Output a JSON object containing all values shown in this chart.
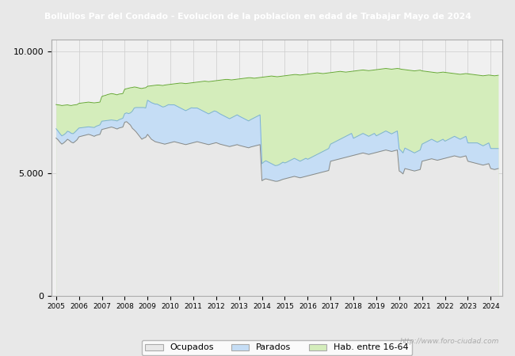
{
  "title": "Bollullos Par del Condado - Evolucion de la poblacion en edad de Trabajar Mayo de 2024",
  "title_bg": "#4472c4",
  "title_color": "#ffffff",
  "ylim": [
    0,
    10500
  ],
  "yticks": [
    0,
    5000,
    10000
  ],
  "ytick_labels": [
    "0",
    "5.000",
    "10.000"
  ],
  "xmin": 2004.8,
  "xmax": 2024.5,
  "bg_outer": "#e8e8e8",
  "bg_plot": "#f0f0f0",
  "watermark": "http://www.foro-ciudad.com",
  "color_hab_fill": "#d4edbb",
  "color_hab_line": "#66aa33",
  "color_par_fill": "#c5ddf5",
  "color_par_line": "#7ab0d8",
  "color_ocu_fill": "#e8e8e8",
  "color_ocu_line": "#888888",
  "months": [
    2005.0,
    2005.083,
    2005.167,
    2005.25,
    2005.333,
    2005.417,
    2005.5,
    2005.583,
    2005.667,
    2005.75,
    2005.833,
    2005.917,
    2006.0,
    2006.083,
    2006.167,
    2006.25,
    2006.333,
    2006.417,
    2006.5,
    2006.583,
    2006.667,
    2006.75,
    2006.833,
    2006.917,
    2007.0,
    2007.083,
    2007.167,
    2007.25,
    2007.333,
    2007.417,
    2007.5,
    2007.583,
    2007.667,
    2007.75,
    2007.833,
    2007.917,
    2008.0,
    2008.083,
    2008.167,
    2008.25,
    2008.333,
    2008.417,
    2008.5,
    2008.583,
    2008.667,
    2008.75,
    2008.833,
    2008.917,
    2009.0,
    2009.083,
    2009.167,
    2009.25,
    2009.333,
    2009.417,
    2009.5,
    2009.583,
    2009.667,
    2009.75,
    2009.833,
    2009.917,
    2010.0,
    2010.083,
    2010.167,
    2010.25,
    2010.333,
    2010.417,
    2010.5,
    2010.583,
    2010.667,
    2010.75,
    2010.833,
    2010.917,
    2011.0,
    2011.083,
    2011.167,
    2011.25,
    2011.333,
    2011.417,
    2011.5,
    2011.583,
    2011.667,
    2011.75,
    2011.833,
    2011.917,
    2012.0,
    2012.083,
    2012.167,
    2012.25,
    2012.333,
    2012.417,
    2012.5,
    2012.583,
    2012.667,
    2012.75,
    2012.833,
    2012.917,
    2013.0,
    2013.083,
    2013.167,
    2013.25,
    2013.333,
    2013.417,
    2013.5,
    2013.583,
    2013.667,
    2013.75,
    2013.833,
    2013.917,
    2014.0,
    2014.083,
    2014.167,
    2014.25,
    2014.333,
    2014.417,
    2014.5,
    2014.583,
    2014.667,
    2014.75,
    2014.833,
    2014.917,
    2015.0,
    2015.083,
    2015.167,
    2015.25,
    2015.333,
    2015.417,
    2015.5,
    2015.583,
    2015.667,
    2015.75,
    2015.833,
    2015.917,
    2016.0,
    2016.083,
    2016.167,
    2016.25,
    2016.333,
    2016.417,
    2016.5,
    2016.583,
    2016.667,
    2016.75,
    2016.833,
    2016.917,
    2017.0,
    2017.083,
    2017.167,
    2017.25,
    2017.333,
    2017.417,
    2017.5,
    2017.583,
    2017.667,
    2017.75,
    2017.833,
    2017.917,
    2018.0,
    2018.083,
    2018.167,
    2018.25,
    2018.333,
    2018.417,
    2018.5,
    2018.583,
    2018.667,
    2018.75,
    2018.833,
    2018.917,
    2019.0,
    2019.083,
    2019.167,
    2019.25,
    2019.333,
    2019.417,
    2019.5,
    2019.583,
    2019.667,
    2019.75,
    2019.833,
    2019.917,
    2020.0,
    2020.083,
    2020.167,
    2020.25,
    2020.333,
    2020.417,
    2020.5,
    2020.583,
    2020.667,
    2020.75,
    2020.833,
    2020.917,
    2021.0,
    2021.083,
    2021.167,
    2021.25,
    2021.333,
    2021.417,
    2021.5,
    2021.583,
    2021.667,
    2021.75,
    2021.833,
    2021.917,
    2022.0,
    2022.083,
    2022.167,
    2022.25,
    2022.333,
    2022.417,
    2022.5,
    2022.583,
    2022.667,
    2022.75,
    2022.833,
    2022.917,
    2023.0,
    2023.083,
    2023.167,
    2023.25,
    2023.333,
    2023.417,
    2023.5,
    2023.583,
    2023.667,
    2023.75,
    2023.833,
    2023.917,
    2024.0,
    2024.083,
    2024.167,
    2024.25,
    2024.333
  ],
  "hab1664": [
    7820,
    7810,
    7800,
    7780,
    7790,
    7800,
    7810,
    7790,
    7780,
    7800,
    7810,
    7820,
    7870,
    7880,
    7890,
    7900,
    7910,
    7920,
    7910,
    7900,
    7890,
    7900,
    7910,
    7920,
    8150,
    8180,
    8200,
    8230,
    8250,
    8270,
    8260,
    8240,
    8220,
    8250,
    8260,
    8270,
    8450,
    8470,
    8490,
    8510,
    8520,
    8540,
    8530,
    8510,
    8490,
    8480,
    8500,
    8510,
    8570,
    8580,
    8590,
    8600,
    8610,
    8620,
    8620,
    8610,
    8600,
    8620,
    8630,
    8640,
    8650,
    8660,
    8670,
    8680,
    8690,
    8700,
    8700,
    8690,
    8680,
    8690,
    8700,
    8710,
    8720,
    8730,
    8740,
    8750,
    8760,
    8770,
    8780,
    8770,
    8760,
    8770,
    8780,
    8790,
    8800,
    8810,
    8820,
    8830,
    8840,
    8850,
    8850,
    8840,
    8830,
    8840,
    8850,
    8860,
    8870,
    8880,
    8890,
    8900,
    8910,
    8920,
    8920,
    8910,
    8900,
    8910,
    8920,
    8930,
    8940,
    8950,
    8960,
    8970,
    8980,
    8990,
    8980,
    8970,
    8960,
    8970,
    8980,
    8990,
    9000,
    9010,
    9020,
    9030,
    9040,
    9050,
    9050,
    9040,
    9030,
    9040,
    9050,
    9060,
    9070,
    9080,
    9090,
    9100,
    9110,
    9120,
    9110,
    9100,
    9090,
    9100,
    9110,
    9120,
    9130,
    9140,
    9150,
    9160,
    9170,
    9180,
    9170,
    9160,
    9150,
    9160,
    9170,
    9180,
    9190,
    9200,
    9210,
    9220,
    9230,
    9240,
    9230,
    9220,
    9210,
    9220,
    9230,
    9240,
    9250,
    9260,
    9270,
    9280,
    9290,
    9300,
    9290,
    9280,
    9270,
    9280,
    9290,
    9300,
    9290,
    9270,
    9260,
    9250,
    9240,
    9230,
    9220,
    9210,
    9200,
    9210,
    9220,
    9230,
    9200,
    9190,
    9180,
    9170,
    9160,
    9150,
    9140,
    9130,
    9120,
    9130,
    9140,
    9150,
    9140,
    9130,
    9120,
    9110,
    9100,
    9090,
    9080,
    9070,
    9060,
    9070,
    9080,
    9090,
    9080,
    9070,
    9060,
    9050,
    9040,
    9030,
    9020,
    9010,
    9000,
    9010,
    9020,
    9030,
    9020,
    9010,
    9000,
    9010,
    9020
  ],
  "ocupados": [
    6450,
    6380,
    6280,
    6200,
    6250,
    6320,
    6400,
    6350,
    6280,
    6250,
    6310,
    6380,
    6500,
    6520,
    6540,
    6560,
    6580,
    6600,
    6580,
    6550,
    6520,
    6560,
    6580,
    6600,
    6800,
    6820,
    6840,
    6860,
    6880,
    6900,
    6880,
    6850,
    6820,
    6860,
    6880,
    6900,
    7100,
    7120,
    7050,
    6980,
    6850,
    6780,
    6700,
    6600,
    6500,
    6400,
    6450,
    6480,
    6600,
    6500,
    6400,
    6350,
    6300,
    6280,
    6260,
    6240,
    6220,
    6200,
    6220,
    6240,
    6260,
    6280,
    6300,
    6280,
    6260,
    6240,
    6220,
    6200,
    6180,
    6200,
    6220,
    6240,
    6260,
    6280,
    6300,
    6280,
    6260,
    6240,
    6220,
    6200,
    6180,
    6200,
    6220,
    6240,
    6260,
    6230,
    6200,
    6180,
    6160,
    6140,
    6120,
    6100,
    6120,
    6140,
    6160,
    6180,
    6150,
    6130,
    6110,
    6090,
    6070,
    6050,
    6080,
    6100,
    6120,
    6140,
    6160,
    6180,
    4700,
    4750,
    4780,
    4760,
    4740,
    4720,
    4700,
    4680,
    4680,
    4700,
    4730,
    4760,
    4780,
    4800,
    4820,
    4840,
    4860,
    4880,
    4860,
    4840,
    4820,
    4840,
    4860,
    4880,
    4900,
    4920,
    4940,
    4960,
    4980,
    5000,
    5020,
    5040,
    5060,
    5080,
    5100,
    5120,
    5500,
    5520,
    5540,
    5560,
    5580,
    5600,
    5620,
    5640,
    5660,
    5680,
    5700,
    5720,
    5740,
    5760,
    5780,
    5800,
    5820,
    5840,
    5820,
    5800,
    5780,
    5800,
    5820,
    5840,
    5860,
    5880,
    5900,
    5920,
    5940,
    5960,
    5940,
    5920,
    5900,
    5920,
    5940,
    5960,
    5100,
    5050,
    4980,
    5200,
    5180,
    5160,
    5140,
    5120,
    5100,
    5120,
    5140,
    5160,
    5500,
    5520,
    5540,
    5560,
    5580,
    5600,
    5580,
    5560,
    5540,
    5560,
    5580,
    5600,
    5620,
    5640,
    5660,
    5680,
    5700,
    5720,
    5700,
    5680,
    5660,
    5680,
    5700,
    5720,
    5500,
    5480,
    5460,
    5440,
    5420,
    5400,
    5380,
    5360,
    5340,
    5360,
    5380,
    5400,
    5200,
    5180,
    5160,
    5180,
    5200
  ],
  "parados": [
    380,
    360,
    350,
    340,
    330,
    320,
    330,
    350,
    360,
    380,
    390,
    400,
    360,
    350,
    340,
    330,
    320,
    310,
    320,
    340,
    360,
    370,
    380,
    390,
    340,
    330,
    320,
    310,
    300,
    290,
    300,
    320,
    330,
    340,
    350,
    360,
    350,
    360,
    400,
    500,
    700,
    900,
    1000,
    1100,
    1200,
    1300,
    1250,
    1200,
    1400,
    1450,
    1500,
    1520,
    1540,
    1560,
    1540,
    1520,
    1500,
    1540,
    1560,
    1580,
    1550,
    1530,
    1510,
    1490,
    1470,
    1450,
    1430,
    1410,
    1390,
    1410,
    1430,
    1450,
    1420,
    1400,
    1380,
    1360,
    1340,
    1320,
    1300,
    1280,
    1260,
    1280,
    1300,
    1320,
    1280,
    1260,
    1240,
    1220,
    1200,
    1180,
    1160,
    1140,
    1160,
    1180,
    1200,
    1220,
    1200,
    1180,
    1160,
    1140,
    1120,
    1100,
    1120,
    1140,
    1160,
    1180,
    1200,
    1220,
    700,
    720,
    740,
    720,
    700,
    680,
    660,
    640,
    650,
    660,
    680,
    700,
    650,
    660,
    680,
    700,
    720,
    740,
    720,
    700,
    680,
    700,
    720,
    740,
    680,
    700,
    720,
    740,
    760,
    780,
    800,
    820,
    840,
    860,
    880,
    900,
    700,
    720,
    740,
    760,
    780,
    800,
    820,
    840,
    860,
    880,
    900,
    920,
    700,
    720,
    740,
    760,
    780,
    800,
    780,
    760,
    740,
    760,
    780,
    800,
    680,
    700,
    720,
    740,
    760,
    780,
    760,
    740,
    720,
    740,
    760,
    780,
    900,
    880,
    860,
    840,
    820,
    800,
    780,
    760,
    740,
    760,
    780,
    800,
    700,
    720,
    740,
    760,
    780,
    800,
    780,
    760,
    740,
    760,
    780,
    800,
    700,
    720,
    740,
    760,
    780,
    800,
    780,
    760,
    740,
    760,
    780,
    800,
    750,
    770,
    790,
    810,
    830,
    850,
    830,
    810,
    790,
    810,
    830,
    850,
    820,
    840,
    860,
    840,
    820
  ]
}
